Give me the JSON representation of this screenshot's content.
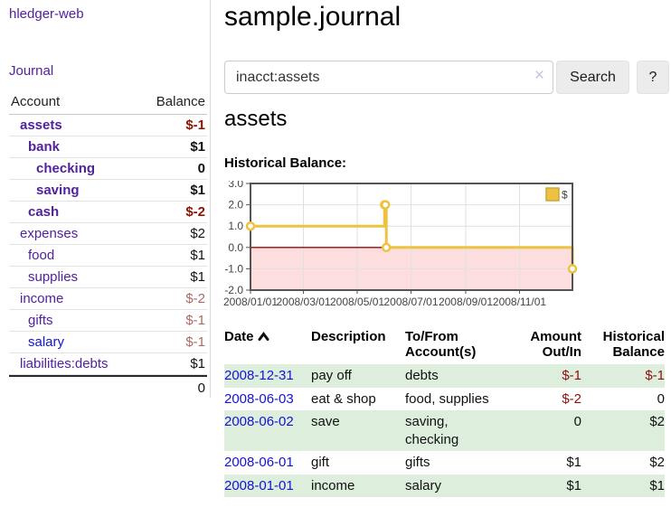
{
  "app": {
    "brand": "hledger-web",
    "nav_journal": "Journal"
  },
  "sidebar": {
    "header": {
      "account": "Account",
      "balance": "Balance"
    },
    "rows": [
      {
        "name": "assets",
        "balance": "$-1"
      },
      {
        "name": "bank",
        "balance": "$1"
      },
      {
        "name": "checking",
        "balance": "0"
      },
      {
        "name": "saving",
        "balance": "$1"
      },
      {
        "name": "cash",
        "balance": "$-2"
      },
      {
        "name": "expenses",
        "balance": "$2"
      },
      {
        "name": "food",
        "balance": "$1"
      },
      {
        "name": "supplies",
        "balance": "$1"
      },
      {
        "name": "income",
        "balance": "$-2"
      },
      {
        "name": "gifts",
        "balance": "$-1"
      },
      {
        "name": "salary",
        "balance": "$-1"
      },
      {
        "name": "liabilities:debts",
        "balance": "$1"
      }
    ],
    "total": "0"
  },
  "main": {
    "title": "sample.journal",
    "search": {
      "value": "inacct:assets",
      "clear": "×",
      "button": "Search",
      "help": "?"
    },
    "section_title": "assets",
    "chart_label": "Historical Balance:",
    "table": {
      "headers": {
        "date": "Date",
        "description": "Description",
        "to_from": "To/From\nAccount(s)",
        "amount": "Amount\nOut/In",
        "historical": "Historical\nBalance"
      },
      "rows": [
        {
          "date": "2008-12-31",
          "description": "pay off",
          "to_from": "debts",
          "amount": "$-1",
          "historical": "$-1"
        },
        {
          "date": "2008-06-03",
          "description": "eat & shop",
          "to_from": "food, supplies",
          "amount": "$-2",
          "historical": "0"
        },
        {
          "date": "2008-06-02",
          "description": "save",
          "to_from": "saving,\nchecking",
          "amount": "0",
          "historical": "$2"
        },
        {
          "date": "2008-06-01",
          "description": "gift",
          "to_from": "gifts",
          "amount": "$1",
          "historical": "$2"
        },
        {
          "date": "2008-01-01",
          "description": "income",
          "to_from": "salary",
          "amount": "$1",
          "historical": "$1"
        }
      ]
    }
  },
  "chart_data": {
    "type": "line",
    "title": "Historical Balance:",
    "step": true,
    "series": [
      {
        "name": "$",
        "color": "#EDC240",
        "points": [
          [
            "2008-01-01",
            1
          ],
          [
            "2008-06-01",
            2
          ],
          [
            "2008-06-02",
            2
          ],
          [
            "2008-06-03",
            0
          ],
          [
            "2008-12-31",
            -1
          ]
        ]
      }
    ],
    "x_range": [
      "2008-01-01",
      "2008-12-31"
    ],
    "x_tick_dates": [
      "2008-01-01",
      "2008-03-01",
      "2008-05-01",
      "2008-07-01",
      "2008-09-01",
      "2008-11-01"
    ],
    "x_tick_labels": [
      "2008/01/01",
      "2008/03/01",
      "2008/05/01",
      "2008/07/01",
      "2008/09/01",
      "2008/11/01"
    ],
    "y_ticks": [
      3,
      2,
      1,
      0,
      -1,
      -2
    ],
    "y_tick_labels": [
      "3.0",
      "2.0",
      "1.0",
      "0.0",
      "-1.0",
      "-2.0"
    ],
    "ylim": [
      -2,
      3
    ],
    "grid": true,
    "legend_position": "top-right",
    "legend_label": "$",
    "zero_line_color": "#9c0a0a",
    "negative_region_color": "#fcdede",
    "gridline_color": "#e0e0e0",
    "border_color": "#545454"
  },
  "colors": {
    "link_purple": "#52219f",
    "link_blue": "#1414d2",
    "negative_bold": "#8e1300",
    "negative_soft": "#aa6b64",
    "negative_table": "#8a1010",
    "row_green": "#ddeedd",
    "chart_gold": "#EDC240"
  }
}
